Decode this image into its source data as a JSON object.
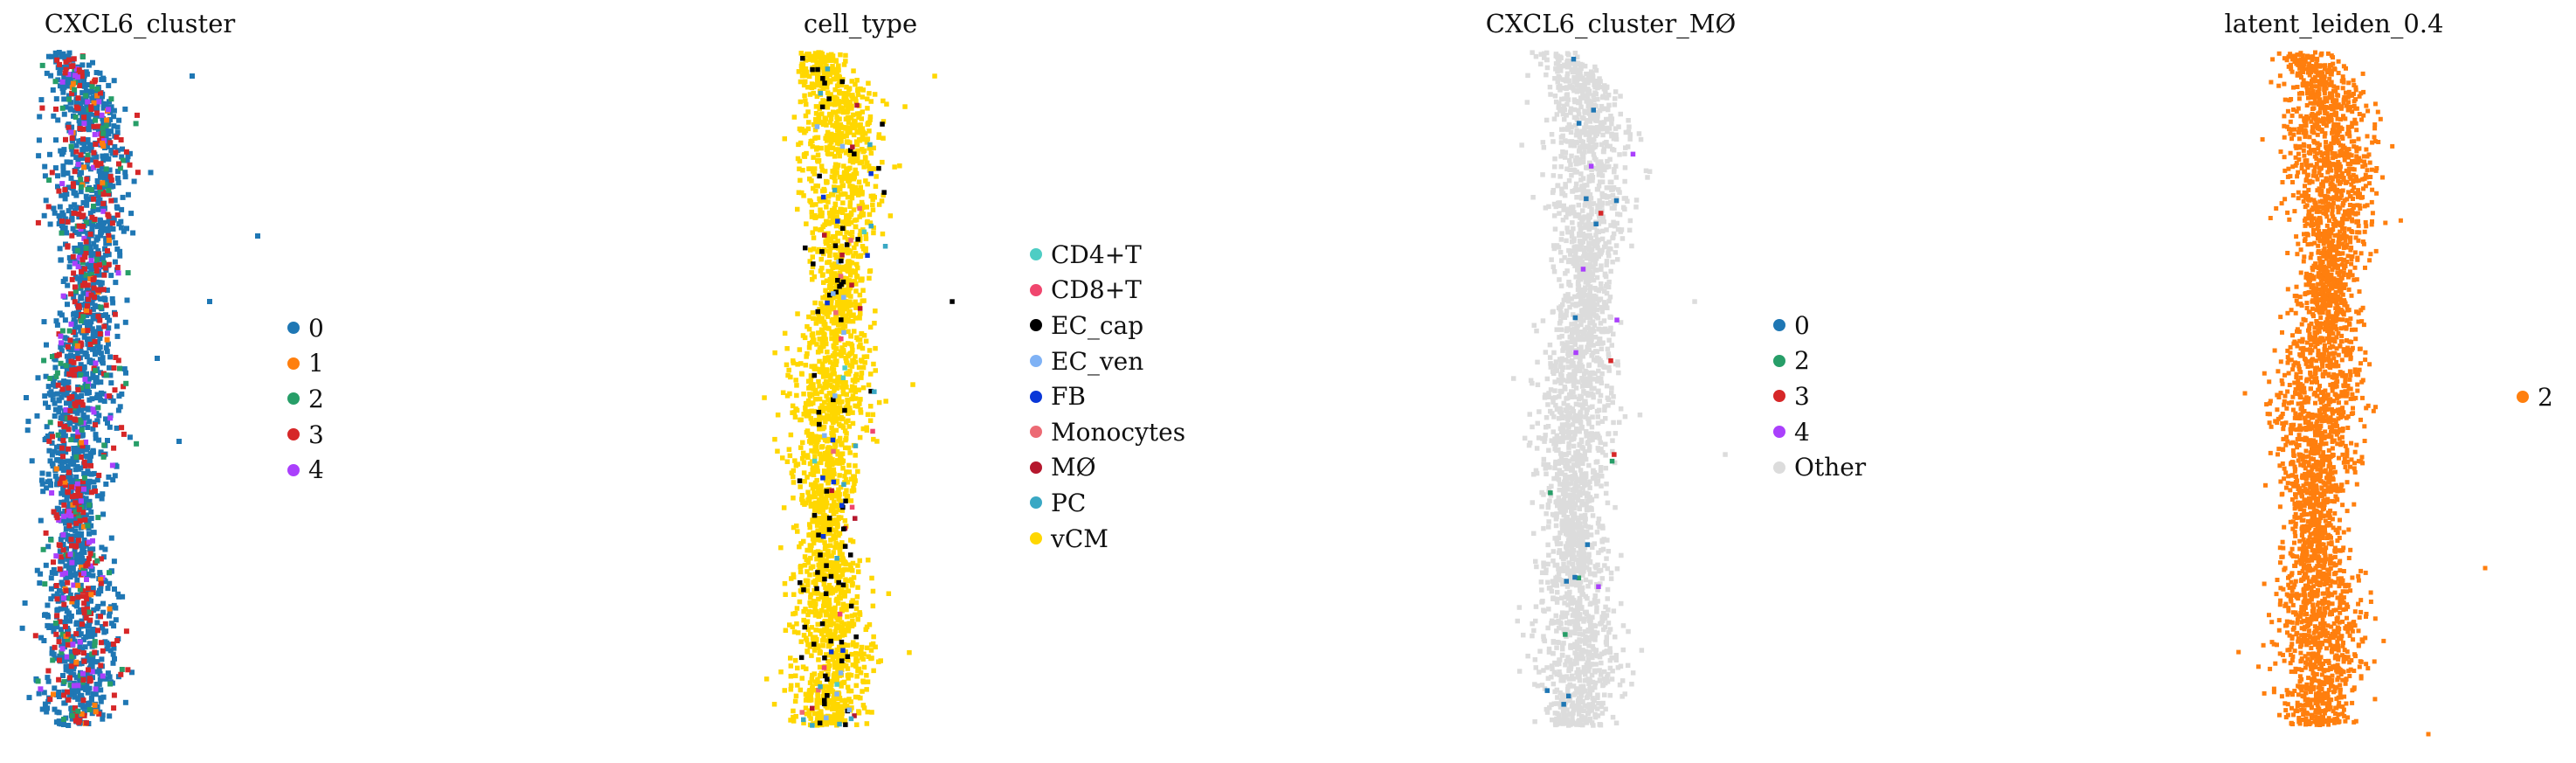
{
  "chart_data": [
    {
      "type": "scatter",
      "title": "CXCL6_cluster",
      "legend_position": "right",
      "grid": false,
      "axes_visible": false,
      "legend": [
        {
          "label": "0",
          "color": "#1f77b4"
        },
        {
          "label": "1",
          "color": "#ff7f0e"
        },
        {
          "label": "2",
          "color": "#279e68"
        },
        {
          "label": "3",
          "color": "#d62728"
        },
        {
          "label": "4",
          "color": "#aa40fc"
        }
      ],
      "composition": [
        {
          "label": "0",
          "weight": 72
        },
        {
          "label": "1",
          "weight": 2
        },
        {
          "label": "2",
          "weight": 6
        },
        {
          "label": "3",
          "weight": 16
        },
        {
          "label": "4",
          "weight": 4
        }
      ]
    },
    {
      "type": "scatter",
      "title": "cell_type",
      "legend_position": "right",
      "grid": false,
      "axes_visible": false,
      "legend": [
        {
          "label": "CD4+T",
          "color": "#4ecdc4"
        },
        {
          "label": "CD8+T",
          "color": "#f0466e"
        },
        {
          "label": "EC_cap",
          "color": "#000000"
        },
        {
          "label": "EC_ven",
          "color": "#7fb2f5"
        },
        {
          "label": "FB",
          "color": "#0a37d8"
        },
        {
          "label": "Monocytes",
          "color": "#ec6a74"
        },
        {
          "label": "MØ",
          "color": "#b5172d"
        },
        {
          "label": "PC",
          "color": "#3aa8c4"
        },
        {
          "label": "vCM",
          "color": "#ffd700"
        }
      ],
      "composition": [
        {
          "label": "CD4+T",
          "weight": 0.3
        },
        {
          "label": "CD8+T",
          "weight": 0.3
        },
        {
          "label": "EC_cap",
          "weight": 3
        },
        {
          "label": "EC_ven",
          "weight": 0.5
        },
        {
          "label": "FB",
          "weight": 0.6
        },
        {
          "label": "Monocytes",
          "weight": 0.3
        },
        {
          "label": "MØ",
          "weight": 0.5
        },
        {
          "label": "PC",
          "weight": 0.4
        },
        {
          "label": "vCM",
          "weight": 93
        }
      ]
    },
    {
      "type": "scatter",
      "title": "CXCL6_cluster_MØ",
      "legend_position": "right",
      "grid": false,
      "axes_visible": false,
      "legend": [
        {
          "label": "0",
          "color": "#1f77b4"
        },
        {
          "label": "2",
          "color": "#279e68"
        },
        {
          "label": "3",
          "color": "#d62728"
        },
        {
          "label": "4",
          "color": "#aa40fc"
        },
        {
          "label": "Other",
          "color": "#dcdcdc"
        }
      ],
      "composition": [
        {
          "label": "0",
          "weight": 0.6
        },
        {
          "label": "2",
          "weight": 0.2
        },
        {
          "label": "3",
          "weight": 0.2
        },
        {
          "label": "4",
          "weight": 0.2
        },
        {
          "label": "Other",
          "weight": 98.8
        }
      ]
    },
    {
      "type": "scatter",
      "title": "latent_leiden_0.4",
      "legend_position": "right",
      "grid": false,
      "axes_visible": false,
      "legend": [
        {
          "label": "2",
          "color": "#ff7f0e"
        }
      ],
      "composition": [
        {
          "label": "2",
          "weight": 100
        }
      ]
    }
  ]
}
